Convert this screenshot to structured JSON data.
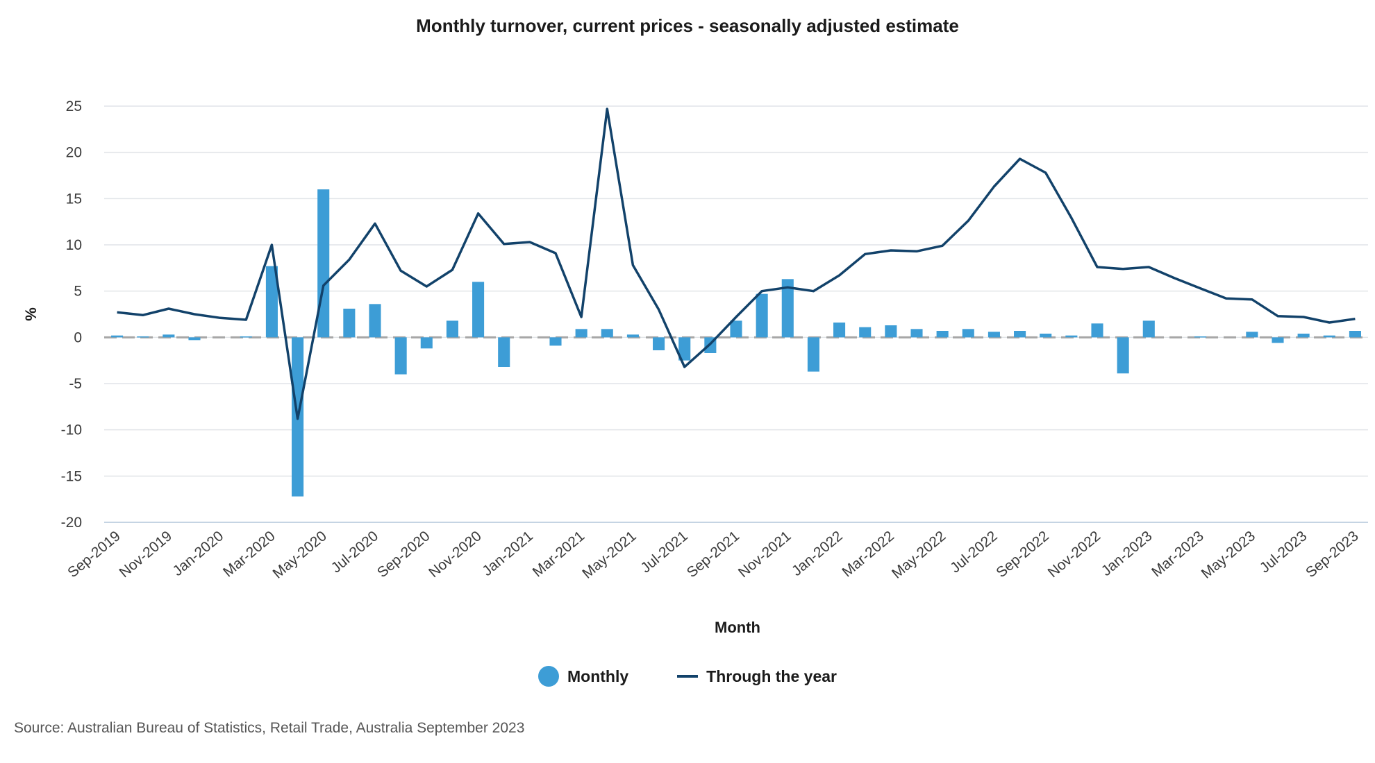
{
  "chart_data": {
    "type": "bar",
    "title": "Monthly turnover, current prices - seasonally adjusted estimate",
    "xlabel": "Month",
    "ylabel": "%",
    "ylim": [
      -20,
      25
    ],
    "yticks": [
      25,
      20,
      15,
      10,
      5,
      0,
      -5,
      -10,
      -15,
      -20
    ],
    "grid": true,
    "legend_position": "bottom",
    "categories": [
      "Sep-2019",
      "Oct-2019",
      "Nov-2019",
      "Dec-2019",
      "Jan-2020",
      "Feb-2020",
      "Mar-2020",
      "Apr-2020",
      "May-2020",
      "Jun-2020",
      "Jul-2020",
      "Aug-2020",
      "Sep-2020",
      "Oct-2020",
      "Nov-2020",
      "Dec-2020",
      "Jan-2021",
      "Feb-2021",
      "Mar-2021",
      "Apr-2021",
      "May-2021",
      "Jun-2021",
      "Jul-2021",
      "Aug-2021",
      "Sep-2021",
      "Oct-2021",
      "Nov-2021",
      "Dec-2021",
      "Jan-2022",
      "Feb-2022",
      "Mar-2022",
      "Apr-2022",
      "May-2022",
      "Jun-2022",
      "Jul-2022",
      "Aug-2022",
      "Sep-2022",
      "Oct-2022",
      "Nov-2022",
      "Dec-2022",
      "Jan-2023",
      "Feb-2023",
      "Mar-2023",
      "Apr-2023",
      "May-2023",
      "Jun-2023",
      "Jul-2023",
      "Aug-2023",
      "Sep-2023"
    ],
    "tick_labels": [
      "Sep-2019",
      "Nov-2019",
      "Jan-2020",
      "Mar-2020",
      "May-2020",
      "Jul-2020",
      "Sep-2020",
      "Nov-2020",
      "Jan-2021",
      "Mar-2021",
      "May-2021",
      "Jul-2021",
      "Sep-2021",
      "Nov-2021",
      "Jan-2022",
      "Mar-2022",
      "May-2022",
      "Jul-2022",
      "Sep-2022",
      "Nov-2022",
      "Jan-2023",
      "Mar-2023",
      "May-2023",
      "Jul-2023",
      "Sep-2023"
    ],
    "series": [
      {
        "name": "Monthly",
        "type": "bar",
        "color": "#3d9dd6",
        "values": [
          0.2,
          0.1,
          0.3,
          -0.3,
          0.0,
          0.1,
          7.7,
          -17.2,
          16.0,
          3.1,
          3.6,
          -4.0,
          -1.2,
          1.8,
          6.0,
          -3.2,
          0.0,
          -0.9,
          0.9,
          0.9,
          0.3,
          -1.4,
          -2.5,
          -1.7,
          1.8,
          4.7,
          6.3,
          -3.7,
          1.6,
          1.1,
          1.3,
          0.9,
          0.7,
          0.9,
          0.6,
          0.7,
          0.4,
          0.2,
          1.5,
          -3.9,
          1.8,
          0.0,
          0.1,
          0.0,
          0.6,
          -0.6,
          0.4,
          0.2,
          0.7
        ]
      },
      {
        "name": "Through the year",
        "type": "line",
        "color": "#12426a",
        "values": [
          2.7,
          2.4,
          3.1,
          2.5,
          2.1,
          1.9,
          10.0,
          -8.8,
          5.6,
          8.4,
          12.3,
          7.2,
          5.5,
          7.3,
          13.4,
          10.1,
          10.3,
          9.1,
          2.2,
          24.7,
          7.8,
          3.0,
          -3.2,
          -0.7,
          2.2,
          5.0,
          5.4,
          5.0,
          6.7,
          9.0,
          9.4,
          9.3,
          9.9,
          12.6,
          16.3,
          19.3,
          17.8,
          12.9,
          7.6,
          7.4,
          7.6,
          6.4,
          5.3,
          4.2,
          4.1,
          2.3,
          2.2,
          1.6,
          2.0
        ]
      }
    ]
  },
  "legend": {
    "monthly_label": "Monthly",
    "through_year_label": "Through the year"
  },
  "source_text": "Source: Australian Bureau of Statistics, Retail Trade, Australia September 2023"
}
